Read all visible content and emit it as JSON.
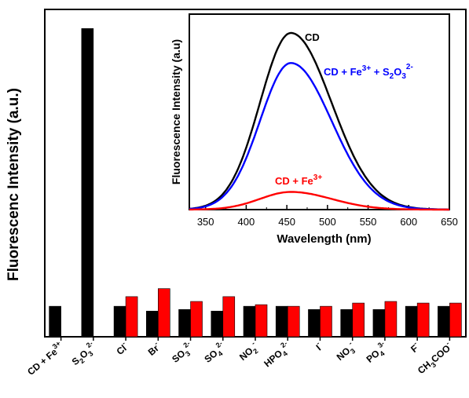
{
  "chart_data": [
    {
      "type": "bar",
      "ylabel": "Fluorescenc Intensity (a.u.)",
      "y_ticks_shown": false,
      "ylim": [
        0,
        1
      ],
      "categories": [
        {
          "base": "CD + Fe",
          "sup": "3+",
          "sub": ""
        },
        {
          "base": "S",
          "sub": "2",
          "base2": "O",
          "sub2": "3",
          "sup": "2-"
        },
        {
          "base": "Cl",
          "sup": "-",
          "sub": ""
        },
        {
          "base": "Br",
          "sup": "-",
          "sub": ""
        },
        {
          "base": "SO",
          "sub": "3",
          "sup": "2-"
        },
        {
          "base": "SO",
          "sub": "4",
          "sup": "2-"
        },
        {
          "base": "NO",
          "sub": "2",
          "sup": "-"
        },
        {
          "base": "HPO",
          "sub": "4",
          "sup": "2-"
        },
        {
          "base": "I",
          "sup": "-",
          "sub": ""
        },
        {
          "base": "NO",
          "sub": "3",
          "sup": "-"
        },
        {
          "base": "PO",
          "sub": "4",
          "sup": "3-"
        },
        {
          "base": "F",
          "sup": "-",
          "sub": ""
        },
        {
          "base": "CH",
          "sub": "3",
          "base2": "COO",
          "sup": "-"
        }
      ],
      "series": [
        {
          "color": "#000000",
          "values": [
            0.095,
            0.96,
            0.095,
            0.08,
            0.085,
            0.08,
            0.095,
            0.095,
            0.085,
            0.085,
            0.085,
            0.095,
            0.095
          ]
        },
        {
          "color": "#ff0000",
          "values": [
            null,
            null,
            0.125,
            0.15,
            0.11,
            0.125,
            0.1,
            0.095,
            0.095,
            0.105,
            0.11,
            0.105,
            0.105
          ]
        }
      ]
    },
    {
      "type": "line",
      "xlabel": "Wavelength (nm)",
      "ylabel": "Fluorescence Intensity (a.u)",
      "xlim": [
        330,
        650
      ],
      "ylim": [
        0,
        1
      ],
      "x_ticks": [
        350,
        400,
        450,
        500,
        550,
        600,
        650
      ],
      "y_ticks_shown": false,
      "series": [
        {
          "color": "#000000",
          "label": {
            "base": "CD"
          },
          "peak_x": 455,
          "peak_y": 1.0,
          "sigma_left": 38,
          "sigma_right": 50
        },
        {
          "color": "#0000ff",
          "label": {
            "base": "CD + Fe",
            "sup": "3+",
            "mid": " + S",
            "sub": "2",
            "base2": "O",
            "sub2": "3",
            "sup2": "2-"
          },
          "peak_x": 455,
          "peak_y": 0.83,
          "sigma_left": 38,
          "sigma_right": 50
        },
        {
          "color": "#ff0000",
          "label": {
            "base": "CD + Fe",
            "sup": "3+"
          },
          "peak_x": 455,
          "peak_y": 0.1,
          "sigma_left": 38,
          "sigma_right": 50
        }
      ]
    }
  ]
}
